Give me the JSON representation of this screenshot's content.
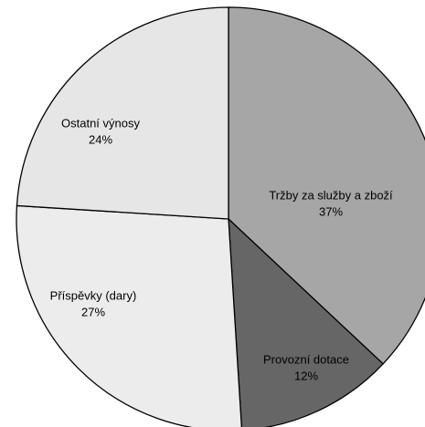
{
  "chart_data": {
    "type": "pie",
    "categories": [
      "Tržby za služby a zboží",
      "Provozní dotace",
      "Příspěvky (dary)",
      "Ostatní výnosy"
    ],
    "values": [
      37,
      12,
      27,
      24
    ],
    "value_labels": [
      "37%",
      "12%",
      "27%",
      "24%"
    ],
    "colors": [
      "#a6a6a6",
      "#666666",
      "#ececec",
      "#e6e6e6"
    ]
  }
}
